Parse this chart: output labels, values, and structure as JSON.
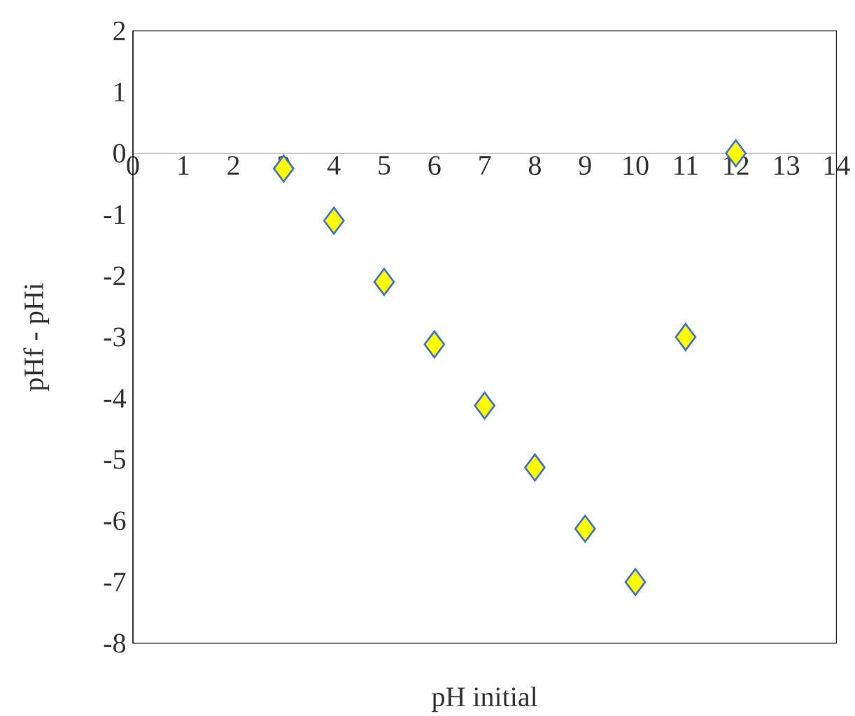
{
  "chart_data": {
    "type": "scatter",
    "xlabel": "pH initial",
    "ylabel": "pHf - pHi",
    "x": [
      3,
      4,
      5,
      6,
      7,
      8,
      9,
      10,
      11,
      12
    ],
    "values": [
      -0.25,
      -1.1,
      -2.1,
      -3.12,
      -4.12,
      -5.13,
      -6.13,
      -7,
      -3,
      0
    ],
    "color": "#ffff00",
    "marker": "diamond",
    "xlim": [
      0,
      14
    ],
    "ylim": [
      -8,
      2
    ],
    "xticks": [
      0,
      1,
      2,
      3,
      4,
      5,
      6,
      7,
      8,
      9,
      10,
      11,
      12,
      13,
      14
    ],
    "yticks": [
      -8,
      -7,
      -6,
      -5,
      -4,
      -3,
      -2,
      -1,
      0,
      1,
      2
    ]
  }
}
